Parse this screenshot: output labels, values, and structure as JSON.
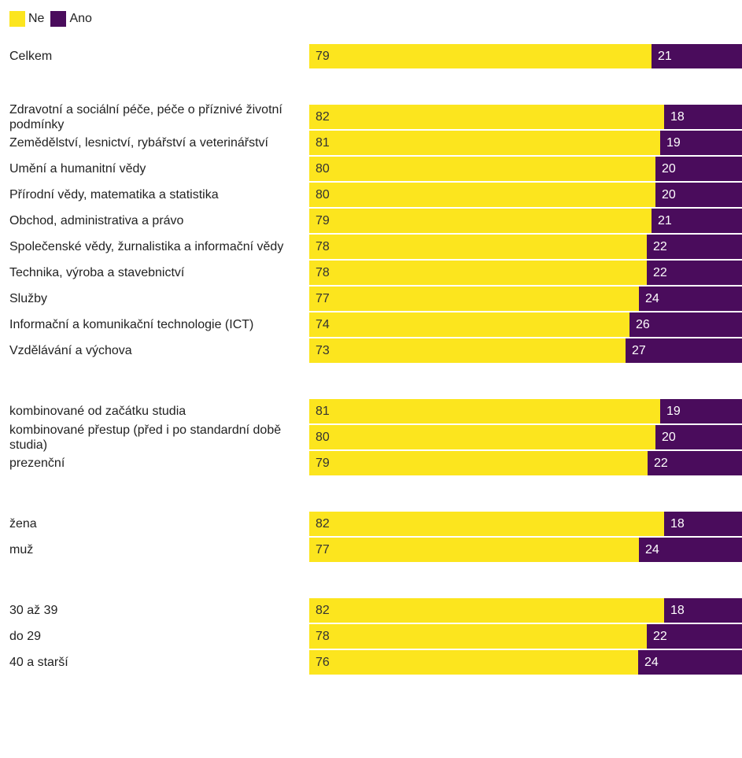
{
  "chart_data": {
    "type": "bar",
    "orientation": "horizontal",
    "stacked": true,
    "normalized": true,
    "title": "",
    "xlabel": "",
    "ylabel": "",
    "legend": {
      "placement": "top-left",
      "entries": [
        "Ne",
        "Ano"
      ]
    },
    "series": [
      {
        "name": "Ne",
        "color": "#FCE51E",
        "label_color": "#333333"
      },
      {
        "name": "Ano",
        "color": "#4A0C5C",
        "label_color": "#ffffff"
      }
    ],
    "groups": [
      {
        "categories": [
          {
            "label": "Celkem",
            "values": [
              79,
              21
            ]
          }
        ]
      },
      {
        "categories": [
          {
            "label": "Zdravotní a sociální péče, péče o příznivé životní podmínky",
            "values": [
              82,
              18
            ]
          },
          {
            "label": "Zemědělství, lesnictví, rybářství a veterinářství",
            "values": [
              81,
              19
            ]
          },
          {
            "label": "Umění a humanitní vědy",
            "values": [
              80,
              20
            ]
          },
          {
            "label": "Přírodní vědy, matematika a statistika",
            "values": [
              80,
              20
            ]
          },
          {
            "label": "Obchod, administrativa a právo",
            "values": [
              79,
              21
            ]
          },
          {
            "label": "Společenské vědy, žurnalistika a informační vědy",
            "values": [
              78,
              22
            ]
          },
          {
            "label": "Technika, výroba a stavebnictví",
            "values": [
              78,
              22
            ]
          },
          {
            "label": "Služby",
            "values": [
              77,
              24
            ]
          },
          {
            "label": "Informační a komunikační technologie (ICT)",
            "values": [
              74,
              26
            ]
          },
          {
            "label": "Vzdělávání a výchova",
            "values": [
              73,
              27
            ]
          }
        ]
      },
      {
        "categories": [
          {
            "label": "kombinované od začátku studia",
            "values": [
              81,
              19
            ]
          },
          {
            "label": "kombinované přestup (před i po standardní době studia)",
            "values": [
              80,
              20
            ]
          },
          {
            "label": "prezenční",
            "values": [
              79,
              22
            ]
          }
        ]
      },
      {
        "categories": [
          {
            "label": "žena",
            "values": [
              82,
              18
            ]
          },
          {
            "label": "muž",
            "values": [
              77,
              24
            ]
          }
        ]
      },
      {
        "categories": [
          {
            "label": "30 až 39",
            "values": [
              82,
              18
            ]
          },
          {
            "label": "do 29",
            "values": [
              78,
              22
            ]
          },
          {
            "label": "40 a starší",
            "values": [
              76,
              24
            ]
          }
        ]
      }
    ]
  }
}
